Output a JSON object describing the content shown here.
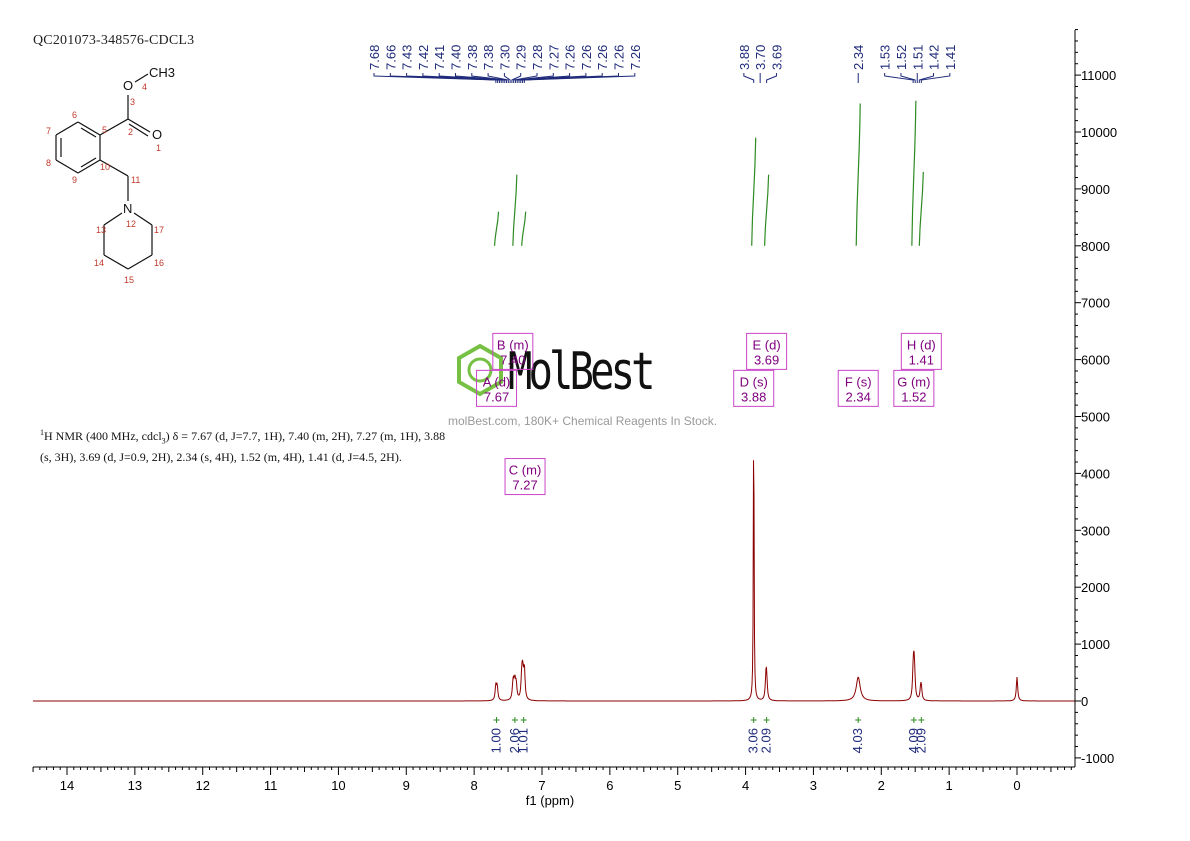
{
  "sample_id": "QC201073-348576-CDCL3",
  "description": {
    "line1_prefix": "H NMR (400 MHz, cdcl",
    "line1_sup": "1",
    "line1_sub": "3",
    "line1_rest": ") δ = 7.67 (d, J=7.7, 1H), 7.40 (m, 2H), 7.27 (m, 1H), 3.88",
    "line2": "(s, 3H), 3.69 (d, J=0.9, 2H), 2.34 (s, 4H), 1.52 (m, 4H), 1.41 (d, J=4.5, 2H)."
  },
  "watermark": {
    "title": "MolBest",
    "subtitle": "molBest.com, 180K+ Chemical Reagents In Stock."
  },
  "molecule": {
    "atoms": [
      "O",
      "CH3",
      "O",
      "N"
    ],
    "numbers": [
      "1",
      "2",
      "3",
      "4",
      "5",
      "6",
      "7",
      "8",
      "9",
      "10",
      "11",
      "12",
      "13",
      "14",
      "15",
      "16",
      "17"
    ]
  },
  "chart_data": {
    "type": "line",
    "xlabel": "f1 (ppm)",
    "ylabel": "",
    "xlim": [
      14.5,
      -0.8
    ],
    "ylim": [
      -1000,
      11800
    ],
    "x_ticks": [
      14,
      13,
      12,
      11,
      10,
      9,
      8,
      7,
      6,
      5,
      4,
      3,
      2,
      1,
      0
    ],
    "y_ticks": [
      -1000,
      0,
      1000,
      2000,
      3000,
      4000,
      5000,
      6000,
      7000,
      8000,
      9000,
      10000,
      11000
    ],
    "peaks": [
      {
        "ppm": 7.68,
        "height": 260
      },
      {
        "ppm": 7.66,
        "height": 230
      },
      {
        "ppm": 7.43,
        "height": 160
      },
      {
        "ppm": 7.42,
        "height": 240
      },
      {
        "ppm": 7.4,
        "height": 300
      },
      {
        "ppm": 7.38,
        "height": 260
      },
      {
        "ppm": 7.3,
        "height": 280
      },
      {
        "ppm": 7.29,
        "height": 320
      },
      {
        "ppm": 7.28,
        "height": 260
      },
      {
        "ppm": 7.26,
        "height": 520
      },
      {
        "ppm": 3.88,
        "height": 5400
      },
      {
        "ppm": 3.7,
        "height": 340
      },
      {
        "ppm": 3.69,
        "height": 360
      },
      {
        "ppm": 2.34,
        "height": 420
      },
      {
        "ppm": 1.53,
        "height": 400
      },
      {
        "ppm": 1.52,
        "height": 440
      },
      {
        "ppm": 1.51,
        "height": 360
      },
      {
        "ppm": 1.42,
        "height": 180
      },
      {
        "ppm": 1.41,
        "height": 190
      },
      {
        "ppm": 0.0,
        "height": 420
      }
    ],
    "peak_labels": [
      "7.68",
      "7.66",
      "7.43",
      "7.42",
      "7.41",
      "7.40",
      "7.38",
      "7.38",
      "7.30",
      "7.29",
      "7.28",
      "7.27",
      "7.26",
      "7.26",
      "7.26",
      "7.26",
      "7.26",
      "3.88",
      "3.70",
      "3.69",
      "2.34",
      "1.53",
      "1.52",
      "1.51",
      "1.42",
      "1.41"
    ],
    "peak_label_groups": [
      {
        "from": 7.68,
        "to": 7.26,
        "count": 17
      },
      {
        "from": 3.88,
        "to": 3.69,
        "count": 3
      },
      {
        "from": 2.34,
        "to": 2.34,
        "count": 1
      },
      {
        "from": 1.53,
        "to": 1.41,
        "count": 5
      }
    ],
    "integration_curves": [
      {
        "ppm": 7.67,
        "start": 8000,
        "end": 8600
      },
      {
        "ppm": 7.4,
        "start": 8000,
        "end": 9250
      },
      {
        "ppm": 7.27,
        "start": 8000,
        "end": 8600
      },
      {
        "ppm": 3.88,
        "start": 8000,
        "end": 9900
      },
      {
        "ppm": 3.69,
        "start": 8000,
        "end": 9250
      },
      {
        "ppm": 2.34,
        "start": 8000,
        "end": 10500
      },
      {
        "ppm": 1.52,
        "start": 8000,
        "end": 10550
      },
      {
        "ppm": 1.41,
        "start": 8000,
        "end": 9300
      }
    ],
    "integrals": [
      {
        "ppm": 7.67,
        "label": "1.00"
      },
      {
        "ppm": 7.4,
        "label": "2.06"
      },
      {
        "ppm": 7.27,
        "label": "1.01"
      },
      {
        "ppm": 3.88,
        "label": "3.06"
      },
      {
        "ppm": 3.69,
        "label": "2.09"
      },
      {
        "ppm": 2.34,
        "label": "4.03"
      },
      {
        "ppm": 1.52,
        "label": "4.09"
      },
      {
        "ppm": 1.41,
        "label": "2.09"
      }
    ],
    "multiplets": [
      {
        "id": "A (d)",
        "shift": "7.67",
        "ppm": 7.67,
        "y": 5600
      },
      {
        "id": "B (m)",
        "shift": "7.40",
        "ppm": 7.43,
        "y": 6250
      },
      {
        "id": "C (m)",
        "shift": "7.27",
        "ppm": 7.25,
        "y": 4050
      },
      {
        "id": "D (s)",
        "shift": "3.88",
        "ppm": 3.88,
        "y": 5600
      },
      {
        "id": "E (d)",
        "shift": "3.69",
        "ppm": 3.69,
        "y": 6250
      },
      {
        "id": "F (s)",
        "shift": "2.34",
        "ppm": 2.34,
        "y": 5600
      },
      {
        "id": "G (m)",
        "shift": "1.52",
        "ppm": 1.52,
        "y": 5600
      },
      {
        "id": "H (d)",
        "shift": "1.41",
        "ppm": 1.41,
        "y": 6250
      }
    ],
    "colors": {
      "spectrum": "#8b0000",
      "integral": "#2e8b22",
      "label": "#1f2a7a",
      "multiplet": "#cc44cc",
      "multiplet_text": "#800080",
      "axis": "#000000",
      "watermark": "#76c043"
    }
  }
}
